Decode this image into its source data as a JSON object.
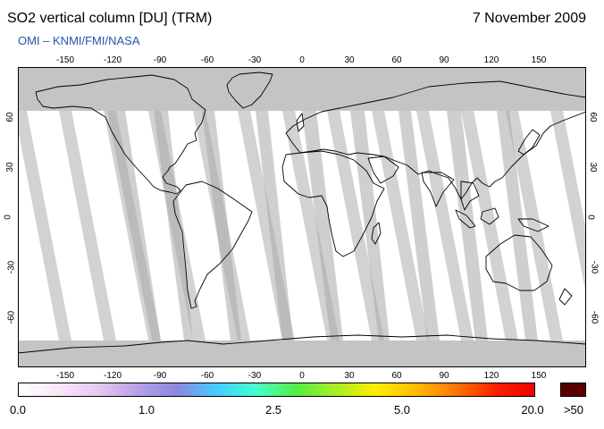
{
  "header": {
    "title": "SO2 vertical column [DU] (TRM)",
    "date": "7 November 2009",
    "credit": "OMI – KNMI/FMI/NASA"
  },
  "colors": {
    "credit": "#2255aa",
    "ocean": "#ffffff",
    "no_data_polar": "#c4c4c4",
    "gap_light": "#d2d2d2",
    "gap_dark": "#a8a8a8",
    "coast": "#000000",
    "frame": "#000000"
  },
  "axes": {
    "lon_ticks": [
      "-150",
      "-120",
      "-90",
      "-60",
      "-30",
      "0",
      "30",
      "60",
      "90",
      "120",
      "150"
    ],
    "lat_ticks": [
      "60",
      "30",
      "0",
      "-30",
      "-60"
    ]
  },
  "colorbar": {
    "labels": [
      "0.0",
      "1.0",
      "2.5",
      "5.0",
      "20.0",
      ">50"
    ],
    "overflow_color": "#5a0000",
    "stops": [
      "#ffffff",
      "#f8e8f8",
      "#e8c8f0",
      "#b8a0e8",
      "#8888e0",
      "#44ccff",
      "#44ffcc",
      "#55ee44",
      "#aaee22",
      "#ffee00",
      "#ffbb00",
      "#ff7700",
      "#ff2200",
      "#ee0000"
    ]
  }
}
